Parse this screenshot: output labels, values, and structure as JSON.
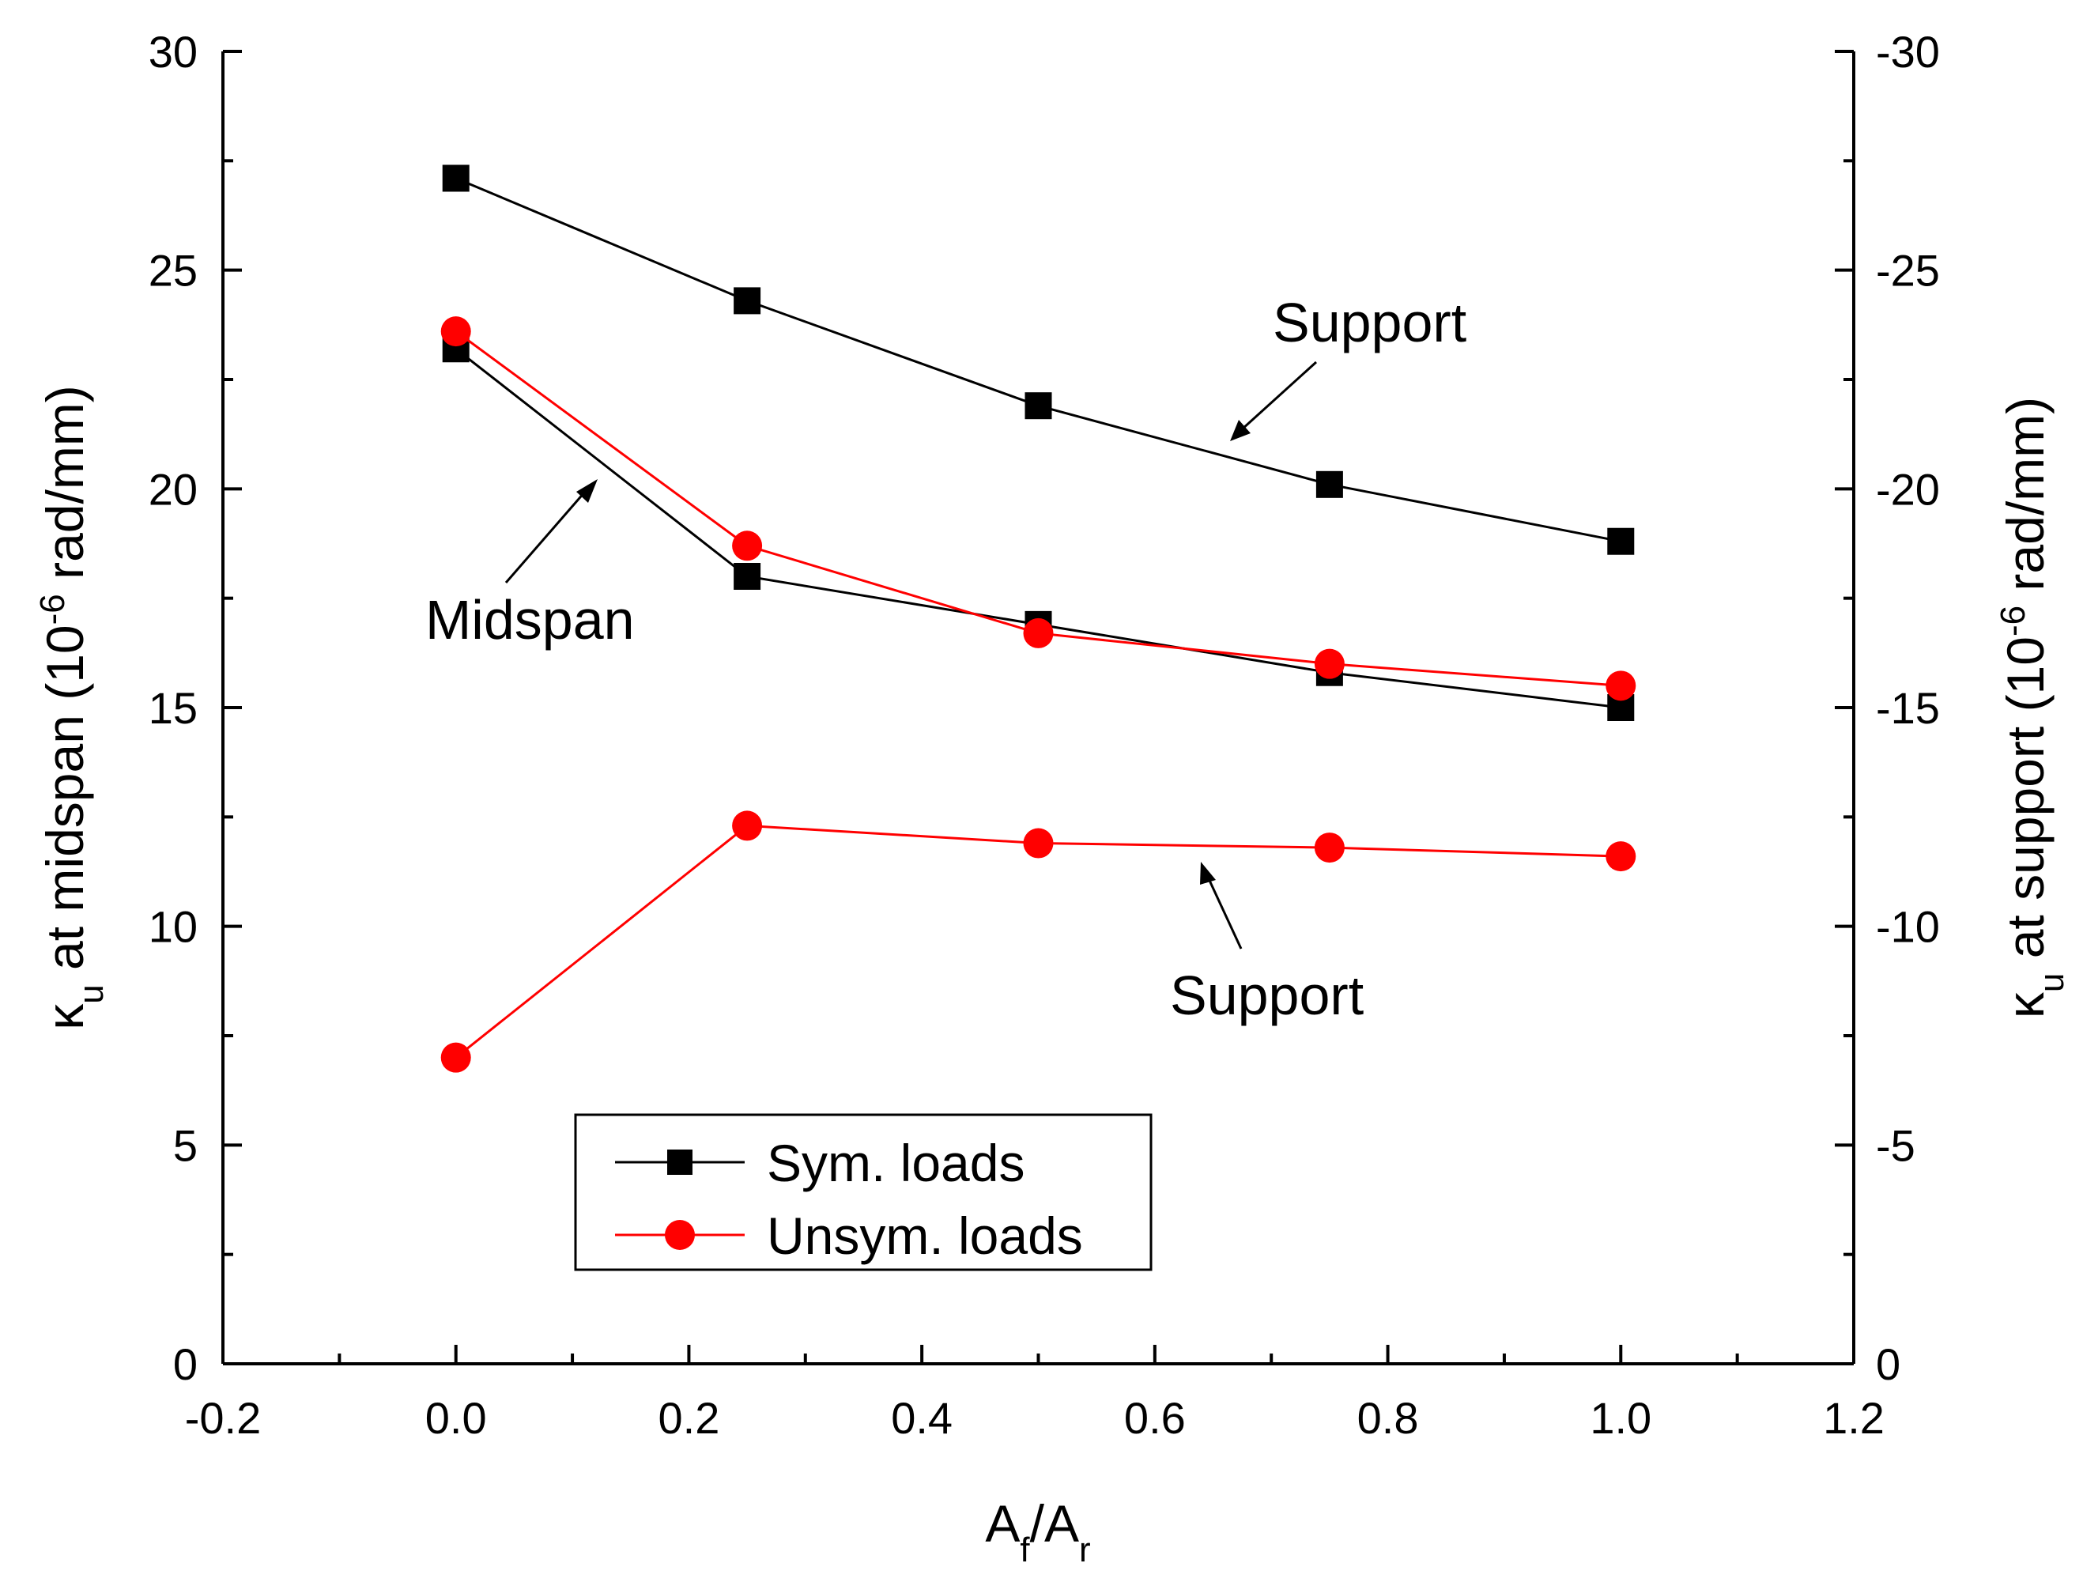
{
  "chart_data": {
    "type": "line",
    "x_axis": {
      "label_main": "A",
      "label_sub1": "f",
      "label_mid": "/A",
      "label_sub2": "r",
      "range": [
        -0.2,
        1.2
      ],
      "ticks": [
        -0.2,
        0.0,
        0.2,
        0.4,
        0.6,
        0.8,
        1.0,
        1.2
      ],
      "tick_labels": [
        "-0.2",
        "0.0",
        "0.2",
        "0.4",
        "0.6",
        "0.8",
        "1.0",
        "1.2"
      ]
    },
    "y_axis_left": {
      "label_kappa": "κ",
      "label_sub": "u",
      "label_rest": " at midspan (10",
      "label_exp": "-6",
      "label_unit": " rad/mm)",
      "range": [
        0,
        30
      ],
      "ticks": [
        0,
        5,
        10,
        15,
        20,
        25,
        30
      ],
      "tick_labels": [
        "0",
        "5",
        "10",
        "15",
        "20",
        "25",
        "30"
      ]
    },
    "y_axis_right": {
      "label_kappa": "κ",
      "label_sub": "u",
      "label_rest": " at support (10",
      "label_exp": "-6",
      "label_unit": " rad/mm)",
      "range": [
        0,
        -30
      ],
      "ticks": [
        0,
        -5,
        -10,
        -15,
        -20,
        -25,
        -30
      ],
      "tick_labels": [
        "0",
        "-5",
        "-10",
        "-15",
        "-20",
        "-25",
        "-30"
      ]
    },
    "x": [
      0.0,
      0.25,
      0.5,
      0.75,
      1.0
    ],
    "series": [
      {
        "name": "Sym. loads",
        "location": "Midspan",
        "axis": "left",
        "color": "#000000",
        "marker": "square",
        "values": [
          23.2,
          18.0,
          16.9,
          15.8,
          15.0
        ]
      },
      {
        "name": "Sym. loads",
        "location": "Support",
        "axis": "right",
        "color": "#000000",
        "marker": "square",
        "values": [
          -27.1,
          -24.3,
          -21.9,
          -20.1,
          -18.8
        ]
      },
      {
        "name": "Unsym. loads",
        "location": "Midspan",
        "axis": "left",
        "color": "#ff0000",
        "marker": "circle",
        "values": [
          23.6,
          18.7,
          16.7,
          16.0,
          15.5
        ]
      },
      {
        "name": "Unsym. loads",
        "location": "Support",
        "axis": "right",
        "color": "#ff0000",
        "marker": "circle",
        "values": [
          -7.0,
          -12.3,
          -11.9,
          -11.8,
          -11.6
        ]
      }
    ],
    "annotations": [
      {
        "text": "Support",
        "points_to": "Sym. loads support curve"
      },
      {
        "text": "Midspan",
        "points_to": "midspan curves"
      },
      {
        "text": "Support",
        "points_to": "Unsym. loads support curve"
      }
    ],
    "legend": {
      "position": "bottom-left",
      "entries": [
        {
          "label": "Sym. loads",
          "color": "#000000",
          "marker": "square"
        },
        {
          "label": "Unsym. loads",
          "color": "#ff0000",
          "marker": "circle"
        }
      ]
    }
  }
}
